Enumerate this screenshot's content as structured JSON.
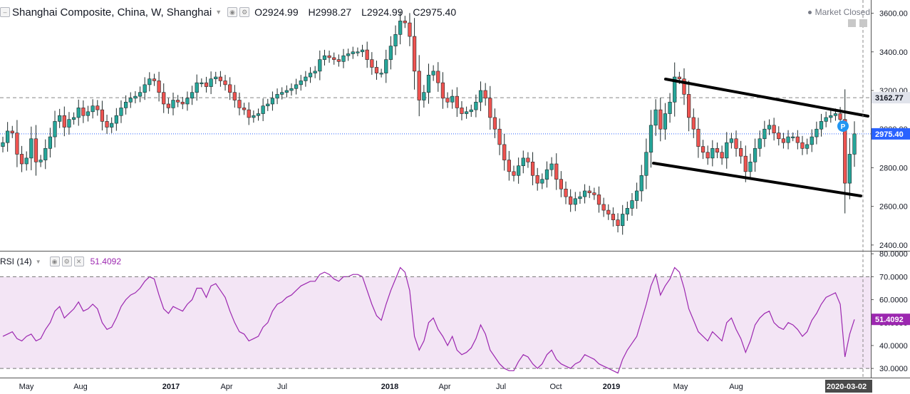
{
  "header": {
    "title": "Shanghai Composite, China, W, Shanghai",
    "open": "O2924.99",
    "high": "H2998.27",
    "low": "L2924.99",
    "close": "C2975.40",
    "market_status": "Market Closed"
  },
  "rsi_header": {
    "label": "RSI (14)",
    "value": "51.4092"
  },
  "colors": {
    "up": "#26a69a",
    "down": "#ef5350",
    "rsi_line": "#9c27b0",
    "rsi_band": "#f3e5f5",
    "price_line": "#2962ff",
    "trendline": "#000000"
  },
  "chart_data": [
    {
      "type": "candlestick",
      "title": "Shanghai Composite, China, W, Shanghai",
      "ylim": [
        2370,
        3650
      ],
      "y_ticks": [
        "3600.00",
        "3400.00",
        "3200.00",
        "3000.00",
        "2800.00",
        "2600.00",
        "2400.00"
      ],
      "x_ticks": [
        "May",
        "Aug",
        "2017",
        "Apr",
        "Jul",
        "2018",
        "Apr",
        "Jul",
        "Oct",
        "2019",
        "May",
        "Aug",
        "2020-03-02"
      ],
      "markers": [
        {
          "label": "3162.77",
          "value": 3162.77,
          "style": "dashed-gray"
        },
        {
          "label": "2975.40",
          "value": 2975.4,
          "style": "dotted-blue"
        }
      ],
      "close_series": [
        2930,
        2990,
        2980,
        2870,
        2820,
        2850,
        2950,
        2830,
        2840,
        2900,
        2960,
        3040,
        3070,
        3010,
        3050,
        3060,
        3110,
        3070,
        3090,
        3120,
        3100,
        3040,
        3010,
        3030,
        3070,
        3110,
        3140,
        3160,
        3170,
        3190,
        3230,
        3260,
        3250,
        3190,
        3130,
        3110,
        3150,
        3140,
        3130,
        3160,
        3190,
        3240,
        3240,
        3220,
        3260,
        3270,
        3250,
        3230,
        3190,
        3150,
        3110,
        3100,
        3060,
        3070,
        3080,
        3120,
        3130,
        3160,
        3180,
        3190,
        3200,
        3210,
        3230,
        3250,
        3270,
        3290,
        3300,
        3360,
        3380,
        3370,
        3360,
        3350,
        3380,
        3390,
        3400,
        3400,
        3410,
        3360,
        3320,
        3290,
        3290,
        3360,
        3430,
        3490,
        3560,
        3550,
        3480,
        3300,
        3150,
        3190,
        3280,
        3300,
        3240,
        3160,
        3140,
        3170,
        3110,
        3080,
        3090,
        3100,
        3140,
        3200,
        3160,
        3060,
        3000,
        2920,
        2840,
        2780,
        2760,
        2810,
        2850,
        2830,
        2760,
        2720,
        2740,
        2790,
        2820,
        2740,
        2690,
        2650,
        2610,
        2640,
        2650,
        2680,
        2670,
        2660,
        2610,
        2580,
        2560,
        2530,
        2500,
        2560,
        2590,
        2630,
        2680,
        2760,
        2880,
        3020,
        3100,
        3000,
        3080,
        3140,
        3270,
        3260,
        3180,
        3060,
        3000,
        2910,
        2880,
        2850,
        2900,
        2880,
        2850,
        2930,
        2950,
        2900,
        2860,
        2780,
        2830,
        2900,
        2950,
        3000,
        3020,
        2980,
        2950,
        2930,
        2960,
        2960,
        2930,
        2900,
        2920,
        2960,
        3000,
        3040,
        3060,
        3070,
        3080,
        3050,
        2720,
        2870,
        2975.4
      ]
    },
    {
      "type": "line",
      "title": "RSI (14)",
      "ylim": [
        26,
        81
      ],
      "y_ticks": [
        "80.0000",
        "70.0000",
        "60.0000",
        "50.0000",
        "40.0000",
        "30.0000"
      ],
      "bands": [
        30,
        70
      ],
      "last_value": 51.4092,
      "values": [
        44,
        45,
        46,
        43,
        42,
        44,
        45,
        42,
        43,
        47,
        50,
        55,
        57,
        52,
        54,
        56,
        59,
        55,
        56,
        58,
        56,
        50,
        47,
        48,
        52,
        57,
        60,
        62,
        63,
        65,
        68,
        70,
        69,
        62,
        56,
        54,
        57,
        56,
        55,
        58,
        60,
        65,
        65,
        61,
        66,
        67,
        64,
        61,
        55,
        50,
        46,
        45,
        42,
        43,
        44,
        48,
        50,
        55,
        58,
        59,
        61,
        62,
        64,
        66,
        67,
        68,
        68,
        71,
        72,
        71,
        69,
        68,
        70,
        70,
        71,
        71,
        70,
        64,
        58,
        53,
        51,
        58,
        64,
        69,
        74,
        72,
        64,
        44,
        38,
        42,
        50,
        52,
        47,
        44,
        40,
        44,
        38,
        36,
        37,
        39,
        43,
        49,
        45,
        38,
        35,
        32,
        30,
        29,
        29,
        33,
        36,
        35,
        32,
        30,
        32,
        36,
        38,
        34,
        32,
        31,
        30,
        32,
        33,
        36,
        35,
        34,
        32,
        31,
        30,
        29,
        28,
        34,
        38,
        41,
        44,
        51,
        58,
        66,
        71,
        62,
        66,
        69,
        74,
        72,
        65,
        56,
        51,
        46,
        44,
        42,
        46,
        44,
        42,
        50,
        52,
        47,
        43,
        37,
        42,
        49,
        52,
        54,
        55,
        50,
        48,
        47,
        50,
        49,
        47,
        44,
        46,
        51,
        54,
        58,
        61,
        62,
        63,
        58,
        35,
        45,
        51.4
      ]
    }
  ]
}
